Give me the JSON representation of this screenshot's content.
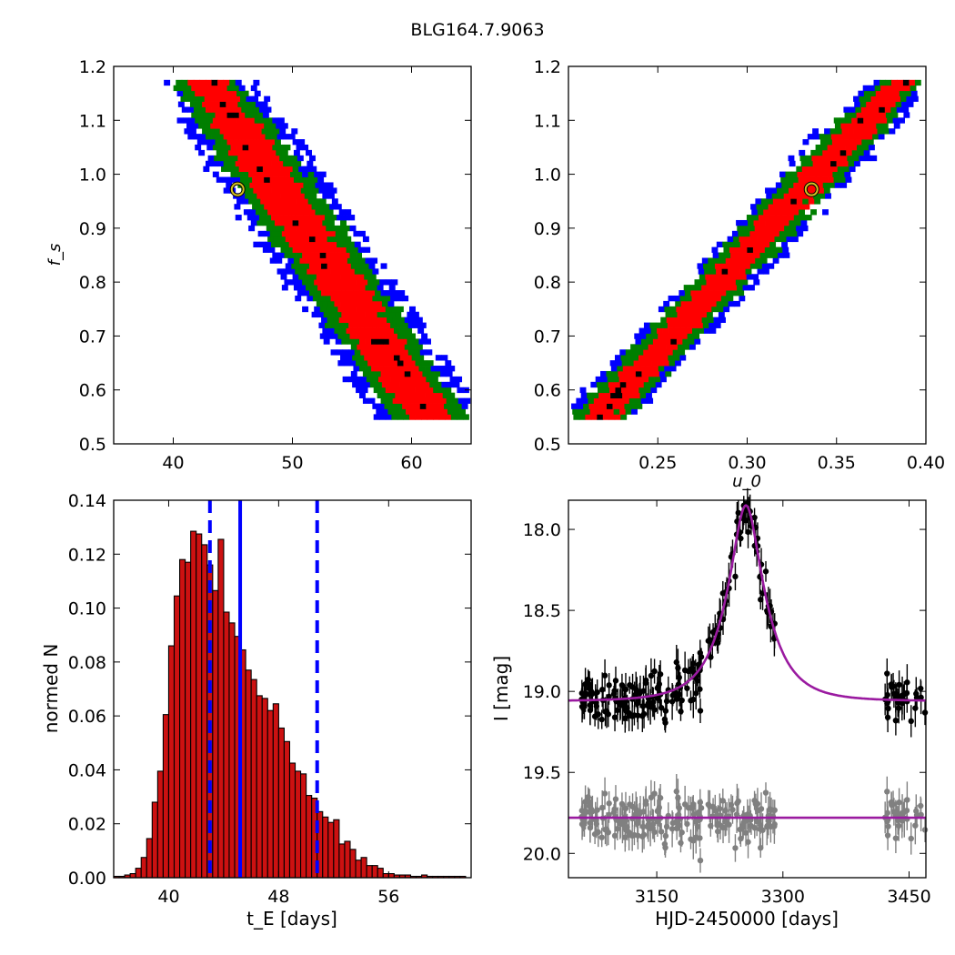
{
  "figure": {
    "title": "BLG164.7.9063"
  },
  "colors": {
    "blue": "#0000ff",
    "green": "#007f00",
    "red": "#ff0000",
    "black": "#000000",
    "bar_fill": "#cc1111",
    "model": "#9a1aa0",
    "resid": "#808080",
    "best_fit_marker": "#d4c020"
  },
  "chart_data": [
    {
      "type": "heatmap",
      "panel": "top-left",
      "xlabel": "",
      "ylabel": "f_s",
      "xlim": [
        35,
        65
      ],
      "ylim": [
        0.5,
        1.2
      ],
      "x_ticks": [
        "40",
        "50",
        "60"
      ],
      "y_ticks": [
        "0.5",
        "0.6",
        "0.7",
        "0.8",
        "0.9",
        "1.0",
        "1.1",
        "1.2"
      ],
      "density_band": {
        "ridge_x_at_fs_1_17": 42.5,
        "ridge_x_at_fs_0_57": 60.5,
        "fs_range": [
          0.545,
          1.17
        ]
      },
      "best_fit": {
        "x": 45.4,
        "y": 0.972
      }
    },
    {
      "type": "heatmap",
      "panel": "top-right",
      "xlabel": "u_0",
      "ylabel": "",
      "xlim": [
        0.2,
        0.4
      ],
      "ylim": [
        0.5,
        1.2
      ],
      "x_ticks": [
        "0.25",
        "0.30",
        "0.35",
        "0.40"
      ],
      "y_ticks": [
        "0.5",
        "0.6",
        "0.7",
        "0.8",
        "0.9",
        "1.0",
        "1.1",
        "1.2"
      ],
      "density_band": {
        "ridge_x_at_fs_0_55": 0.217,
        "ridge_x_at_fs_1_17": 0.385,
        "fs_range": [
          0.545,
          1.17
        ]
      },
      "best_fit": {
        "x": 0.336,
        "y": 0.972
      }
    },
    {
      "type": "bar",
      "panel": "bottom-left",
      "xlabel": "t_E  [days]",
      "ylabel": "normed N",
      "xlim": [
        36,
        62
      ],
      "ylim": [
        0.0,
        0.14
      ],
      "x_ticks": [
        "40",
        "48",
        "56"
      ],
      "y_ticks": [
        "0.00",
        "0.02",
        "0.04",
        "0.06",
        "0.08",
        "0.10",
        "0.12",
        "0.14"
      ],
      "bin_start": 36.0,
      "bin_width": 0.4,
      "values": [
        0.0005,
        0.0005,
        0.001,
        0.0015,
        0.0035,
        0.0075,
        0.0145,
        0.028,
        0.0395,
        0.0605,
        0.086,
        0.1045,
        0.118,
        0.117,
        0.1285,
        0.1275,
        0.1235,
        0.116,
        0.1065,
        0.1255,
        0.0985,
        0.0945,
        0.0895,
        0.0845,
        0.077,
        0.0735,
        0.0675,
        0.0665,
        0.062,
        0.0645,
        0.0555,
        0.0505,
        0.0425,
        0.0395,
        0.0385,
        0.0305,
        0.0295,
        0.0245,
        0.0225,
        0.0205,
        0.0215,
        0.0125,
        0.0135,
        0.0105,
        0.0065,
        0.0075,
        0.0045,
        0.0045,
        0.0035,
        0.0015,
        0.0015,
        0.001,
        0.001,
        0.001,
        0.0005,
        0.0005,
        0.001,
        0.0005,
        0.0005,
        0.0005,
        0.0005,
        0.0005,
        0.0005,
        0.0005
      ],
      "median": 45.2,
      "percentile_lines": [
        43.0,
        50.8
      ]
    },
    {
      "type": "scatter",
      "panel": "bottom-right",
      "xlabel": "HJD-2450000 [days]",
      "ylabel": "I [mag]",
      "xlim": [
        3045,
        3470
      ],
      "ylim": [
        20.15,
        17.82
      ],
      "x_ticks": [
        "3150",
        "3300",
        "3450"
      ],
      "y_ticks": [
        "18.0",
        "18.5",
        "19.0",
        "19.5",
        "20.0"
      ],
      "model": {
        "t0": 3256,
        "tE": 45.4,
        "u0": 0.336,
        "fs": 0.972,
        "baseline_mag": 19.06
      },
      "residual_offset": 19.78,
      "observing_seasons": [
        [
          3060,
          3292
        ],
        [
          3420,
          3470
        ]
      ],
      "n_points": 230
    }
  ]
}
